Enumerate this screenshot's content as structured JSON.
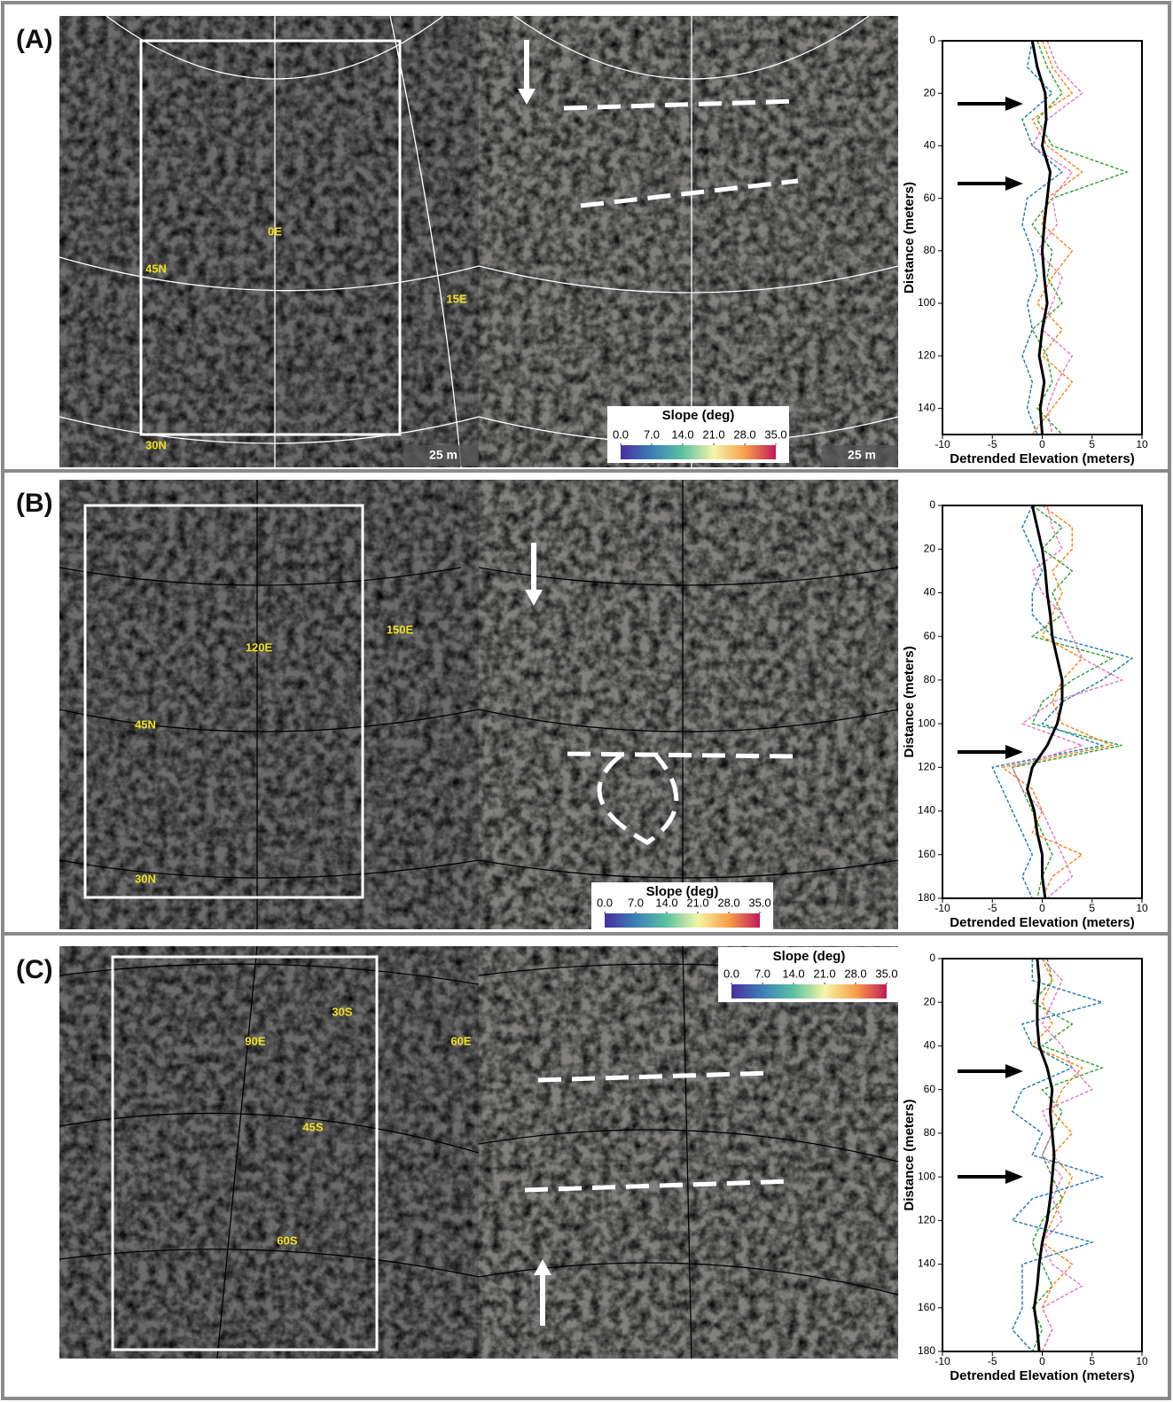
{
  "panels": [
    {
      "label": "(A)",
      "map_labels": [
        "0E",
        "45N",
        "15E",
        "30N"
      ],
      "scale_bars": [
        "25 m",
        "25 m"
      ],
      "colorbar": {
        "title": "Slope (deg)",
        "lim": [
          0,
          35
        ],
        "ticks": [
          {
            "value": 0,
            "label": "0.0"
          },
          {
            "value": 7,
            "label": "7.0"
          },
          {
            "value": 14,
            "label": "14.0"
          },
          {
            "value": 21,
            "label": "21.0"
          },
          {
            "value": 28,
            "label": "28.0"
          },
          {
            "value": 35,
            "label": "35.0"
          }
        ]
      }
    },
    {
      "label": "(B)",
      "map_labels": [
        "120E",
        "150E",
        "45N",
        "30N"
      ],
      "scale_bars": [],
      "colorbar": {
        "title": "Slope (deg)",
        "lim": [
          0,
          35
        ],
        "ticks": [
          {
            "value": 0,
            "label": "0.0"
          },
          {
            "value": 7,
            "label": "7.0"
          },
          {
            "value": 14,
            "label": "14.0"
          },
          {
            "value": 21,
            "label": "21.0"
          },
          {
            "value": 28,
            "label": "28.0"
          },
          {
            "value": 35,
            "label": "35.0"
          }
        ]
      }
    },
    {
      "label": "(C)",
      "map_labels": [
        "90E",
        "30S",
        "60E",
        "45S",
        "60S"
      ],
      "scale_bars": [],
      "colorbar": {
        "title": "Slope (deg)",
        "lim": [
          0,
          35
        ],
        "ticks": [
          {
            "value": 0,
            "label": "0.0"
          },
          {
            "value": 7,
            "label": "7.0"
          },
          {
            "value": 14,
            "label": "14.0"
          },
          {
            "value": 21,
            "label": "21.0"
          },
          {
            "value": 28,
            "label": "28.0"
          },
          {
            "value": 35,
            "label": "35.0"
          }
        ]
      }
    }
  ],
  "chart_data": [
    {
      "type": "line",
      "xlabel": "Detrended Elevation (meters)",
      "ylabel": "Distance (meters)",
      "xlim": [
        -10,
        10
      ],
      "xticks": [
        -10,
        -5,
        0,
        5,
        10
      ],
      "ylim": [
        0,
        150
      ],
      "yticks": [
        0,
        20,
        40,
        60,
        80,
        100,
        120,
        140
      ],
      "y": [
        0,
        10,
        20,
        30,
        40,
        50,
        60,
        70,
        80,
        90,
        100,
        110,
        120,
        130,
        140,
        150
      ],
      "series": [
        {
          "color": "#2ca02c",
          "style": "dashed",
          "values": [
            -0.5,
            0.5,
            2,
            -0.5,
            1,
            8.5,
            1,
            -1,
            1,
            0.5,
            2,
            -1,
            0.5,
            1,
            -0.5,
            2
          ]
        },
        {
          "color": "#ff7f0e",
          "style": "dashed",
          "values": [
            0,
            1,
            3,
            -1,
            0.5,
            4,
            0.5,
            0,
            3,
            1,
            -0.5,
            2,
            0,
            3,
            1,
            -1
          ]
        },
        {
          "color": "#1f77b4",
          "style": "dashed",
          "values": [
            -1,
            -1.5,
            1,
            -2,
            -1,
            2,
            -1.5,
            -2,
            -1,
            -0.5,
            -1.5,
            -1,
            -2,
            -1,
            -1.5,
            -0.5
          ]
        },
        {
          "color": "#e377c2",
          "style": "dashed",
          "values": [
            0.5,
            1.5,
            4,
            0.5,
            -1,
            3,
            1,
            1.5,
            -0.5,
            2,
            1,
            0,
            3,
            1.5,
            0.5,
            1
          ]
        },
        {
          "color": "#000000",
          "style": "solid",
          "values": [
            -1,
            -0.5,
            0.3,
            0.4,
            0,
            0.8,
            0.5,
            0.2,
            0,
            0.2,
            0.5,
            0,
            -0.3,
            0.2,
            -0.2,
            0
          ]
        }
      ]
    },
    {
      "type": "line",
      "xlabel": "Detrended Elevation (meters)",
      "ylabel": "Distance (meters)",
      "xlim": [
        -10,
        10
      ],
      "xticks": [
        -10,
        -5,
        0,
        5,
        10
      ],
      "ylim": [
        0,
        180
      ],
      "yticks": [
        0,
        20,
        40,
        60,
        80,
        100,
        120,
        140,
        160,
        180
      ],
      "y": [
        0,
        10,
        20,
        30,
        40,
        50,
        60,
        70,
        80,
        90,
        100,
        110,
        120,
        130,
        140,
        150,
        160,
        170,
        180
      ],
      "series": [
        {
          "color": "#2ca02c",
          "style": "dashed",
          "values": [
            -1,
            2,
            0,
            3,
            1,
            2,
            -1,
            7,
            3,
            0,
            -1,
            8,
            -3,
            -2,
            -1,
            0,
            1,
            0,
            -0.5
          ]
        },
        {
          "color": "#ff7f0e",
          "style": "dashed",
          "values": [
            0,
            3,
            3,
            1,
            2,
            1,
            0,
            4,
            2,
            1,
            2,
            7,
            -4,
            -1,
            0,
            -1,
            4,
            1,
            0
          ]
        },
        {
          "color": "#1f77b4",
          "style": "dashed",
          "values": [
            -1,
            -2,
            -1,
            0,
            -1,
            -1,
            1,
            9,
            6,
            2,
            0,
            6,
            -5,
            -4,
            -3,
            -2,
            -1,
            -2,
            -1
          ]
        },
        {
          "color": "#e377c2",
          "style": "dashed",
          "values": [
            0.5,
            1,
            2,
            -1,
            0,
            2,
            3,
            4,
            8,
            1,
            -2,
            4,
            -3,
            -2,
            0,
            1,
            2,
            3,
            0.5
          ]
        },
        {
          "color": "#000000",
          "style": "solid",
          "values": [
            -1,
            -0.5,
            0,
            0.3,
            0.5,
            0.8,
            1,
            1.5,
            2,
            2,
            1.5,
            0.5,
            -1,
            -1.5,
            -0.8,
            -0.5,
            0,
            0,
            0.3
          ]
        }
      ]
    },
    {
      "type": "line",
      "xlabel": "Detrended Elevation (meters)",
      "ylabel": "Distance (meters)",
      "xlim": [
        -10,
        10
      ],
      "xticks": [
        -10,
        -5,
        0,
        5,
        10
      ],
      "ylim": [
        0,
        180
      ],
      "yticks": [
        0,
        20,
        40,
        60,
        80,
        100,
        120,
        140,
        160,
        180
      ],
      "y": [
        0,
        10,
        20,
        30,
        40,
        50,
        60,
        70,
        80,
        90,
        100,
        110,
        120,
        130,
        140,
        150,
        160,
        170,
        180
      ],
      "series": [
        {
          "color": "#2ca02c",
          "style": "dashed",
          "values": [
            0.5,
            1,
            -1,
            3,
            0,
            6,
            0,
            2,
            1,
            0,
            1,
            2,
            0,
            -1,
            0,
            1,
            -1,
            0,
            -1
          ]
        },
        {
          "color": "#ff7f0e",
          "style": "dashed",
          "values": [
            0,
            1,
            0,
            1,
            -1,
            4,
            2,
            1,
            3,
            1,
            3,
            2,
            1,
            0,
            3,
            1,
            0,
            1,
            0
          ]
        },
        {
          "color": "#1f77b4",
          "style": "dashed",
          "values": [
            -1,
            -1,
            6,
            -2,
            -1,
            3,
            -2,
            -3,
            0,
            -1,
            6,
            -1,
            -3,
            5,
            -2,
            -2,
            -2,
            -3,
            -1
          ]
        },
        {
          "color": "#e377c2",
          "style": "dashed",
          "values": [
            0,
            2,
            1,
            0,
            2,
            3,
            5,
            0,
            1,
            0,
            2,
            1,
            2,
            0,
            1,
            4,
            0,
            1,
            0
          ]
        },
        {
          "color": "#000000",
          "style": "solid",
          "values": [
            -0.5,
            -0.3,
            -0.5,
            -0.5,
            -0.3,
            0.5,
            1,
            0.8,
            1,
            1.2,
            1,
            0.8,
            0.5,
            0,
            -0.3,
            -0.5,
            -0.8,
            -0.5,
            -0.3
          ]
        }
      ]
    }
  ]
}
